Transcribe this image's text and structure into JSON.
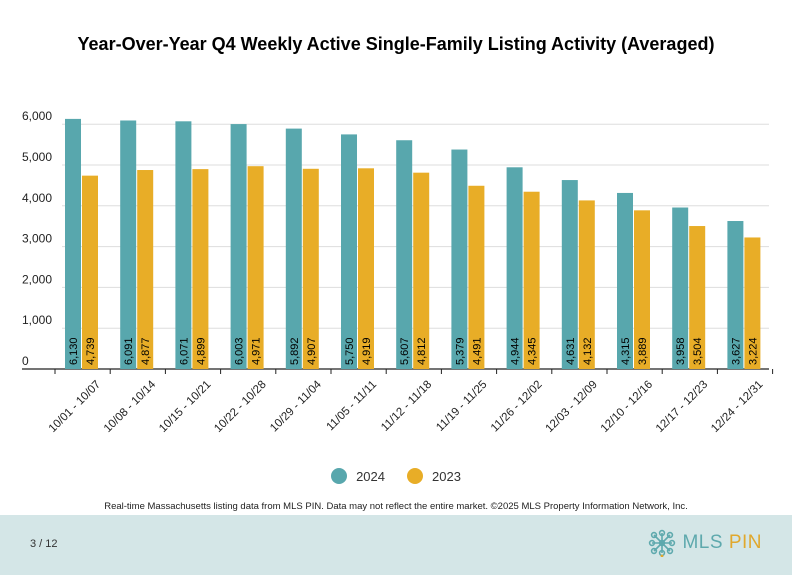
{
  "title": "Year-Over-Year Q4 Weekly Active Single-Family Listing Activity (Averaged)",
  "legend": [
    {
      "label": "2024",
      "color": "#58a7ad"
    },
    {
      "label": "2023",
      "color": "#e8ad27"
    }
  ],
  "disclaimer": "Real-time Massachusetts listing data from MLS PIN. Data may not reflect the entire market. ©2025 MLS Property Information Network, Inc.",
  "footer": {
    "page": "3 / 12",
    "logo_text": "MLS PIN",
    "logo_icon": "mls-pin-logo-icon"
  },
  "chart_data": {
    "type": "bar",
    "categories": [
      "10/01 - 10/07",
      "10/08 - 10/14",
      "10/15 - 10/21",
      "10/22 - 10/28",
      "10/29 - 11/04",
      "11/05 - 11/11",
      "11/12 - 11/18",
      "11/19 - 11/25",
      "11/26 - 12/02",
      "12/03 - 12/09",
      "12/10 - 12/16",
      "12/17 - 12/23",
      "12/24 - 12/31"
    ],
    "series": [
      {
        "name": "2024",
        "color": "#58a7ad",
        "values": [
          6130,
          6091,
          6071,
          6003,
          5892,
          5750,
          5607,
          5379,
          4944,
          4631,
          4315,
          3958,
          3627
        ]
      },
      {
        "name": "2023",
        "color": "#e8ad27",
        "values": [
          4739,
          4877,
          4899,
          4971,
          4907,
          4919,
          4812,
          4491,
          4345,
          4132,
          3889,
          3504,
          3224
        ]
      }
    ],
    "yticks": [
      0,
      1000,
      2000,
      3000,
      4000,
      5000,
      6000
    ],
    "ytick_labels": [
      "0",
      "1,000",
      "2,000",
      "3,000",
      "4,000",
      "5,000",
      "6,000"
    ],
    "ylim": [
      0,
      6200
    ],
    "grid": true,
    "legend_position": "bottom-center",
    "data_labels": "vertical-inside-bar-base"
  }
}
